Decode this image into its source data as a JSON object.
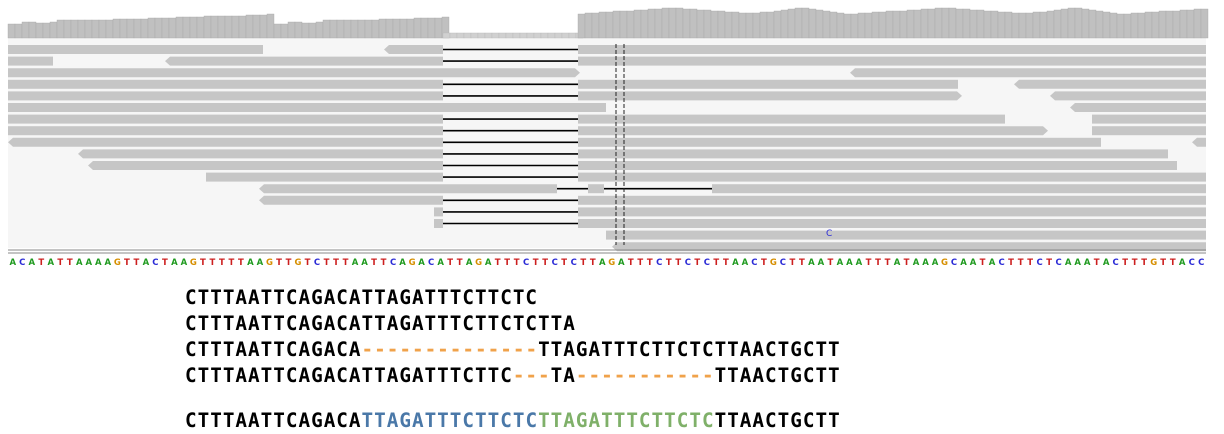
{
  "reference_sequence": "ACATATTAAAAGTTACTAAGTTTTTAAGTTGTCTTTAATTCAGACATTAGATTTCTTCTCTTAGATTTCTTCTCTTAACTGCTTAATAAATTTATAAAGCAATACTTTCTCAAATACTTTGTTACC",
  "mismatch_base": "C",
  "base_colors": {
    "A": "#1f9a1f",
    "C": "#2b2bd6",
    "G": "#d68f00",
    "T": "#cc1f1f"
  },
  "alignment_lines": [
    [
      {
        "t": "CTTTAATTCAGACATTAGATTTCTTCTC",
        "c": "black"
      }
    ],
    [
      {
        "t": "CTTTAATTCAGACATTAGATTTCTTCTCTTA",
        "c": "black"
      }
    ],
    [
      {
        "t": "CTTTAATTCAGACA",
        "c": "black"
      },
      {
        "t": "--------------",
        "c": "gap"
      },
      {
        "t": "TTAGATTTCTTCTCTTAACTGCTT",
        "c": "black"
      }
    ],
    [
      {
        "t": "CTTTAATTCAGACATTAGATTTCTTC",
        "c": "black"
      },
      {
        "t": "---",
        "c": "gap"
      },
      {
        "t": "TA",
        "c": "black"
      },
      {
        "t": "-----------",
        "c": "gap"
      },
      {
        "t": "TTAACTGCTT",
        "c": "black"
      }
    ]
  ],
  "consensus_line": [
    {
      "t": "CTTTAATTCAGACA",
      "c": "black"
    },
    {
      "t": "TTAGATTTCTTCTC",
      "c": "blue"
    },
    {
      "t": "TTAGATTTCTTCTC",
      "c": "green"
    },
    {
      "t": "TTAACTGCTT",
      "c": "black"
    }
  ]
}
